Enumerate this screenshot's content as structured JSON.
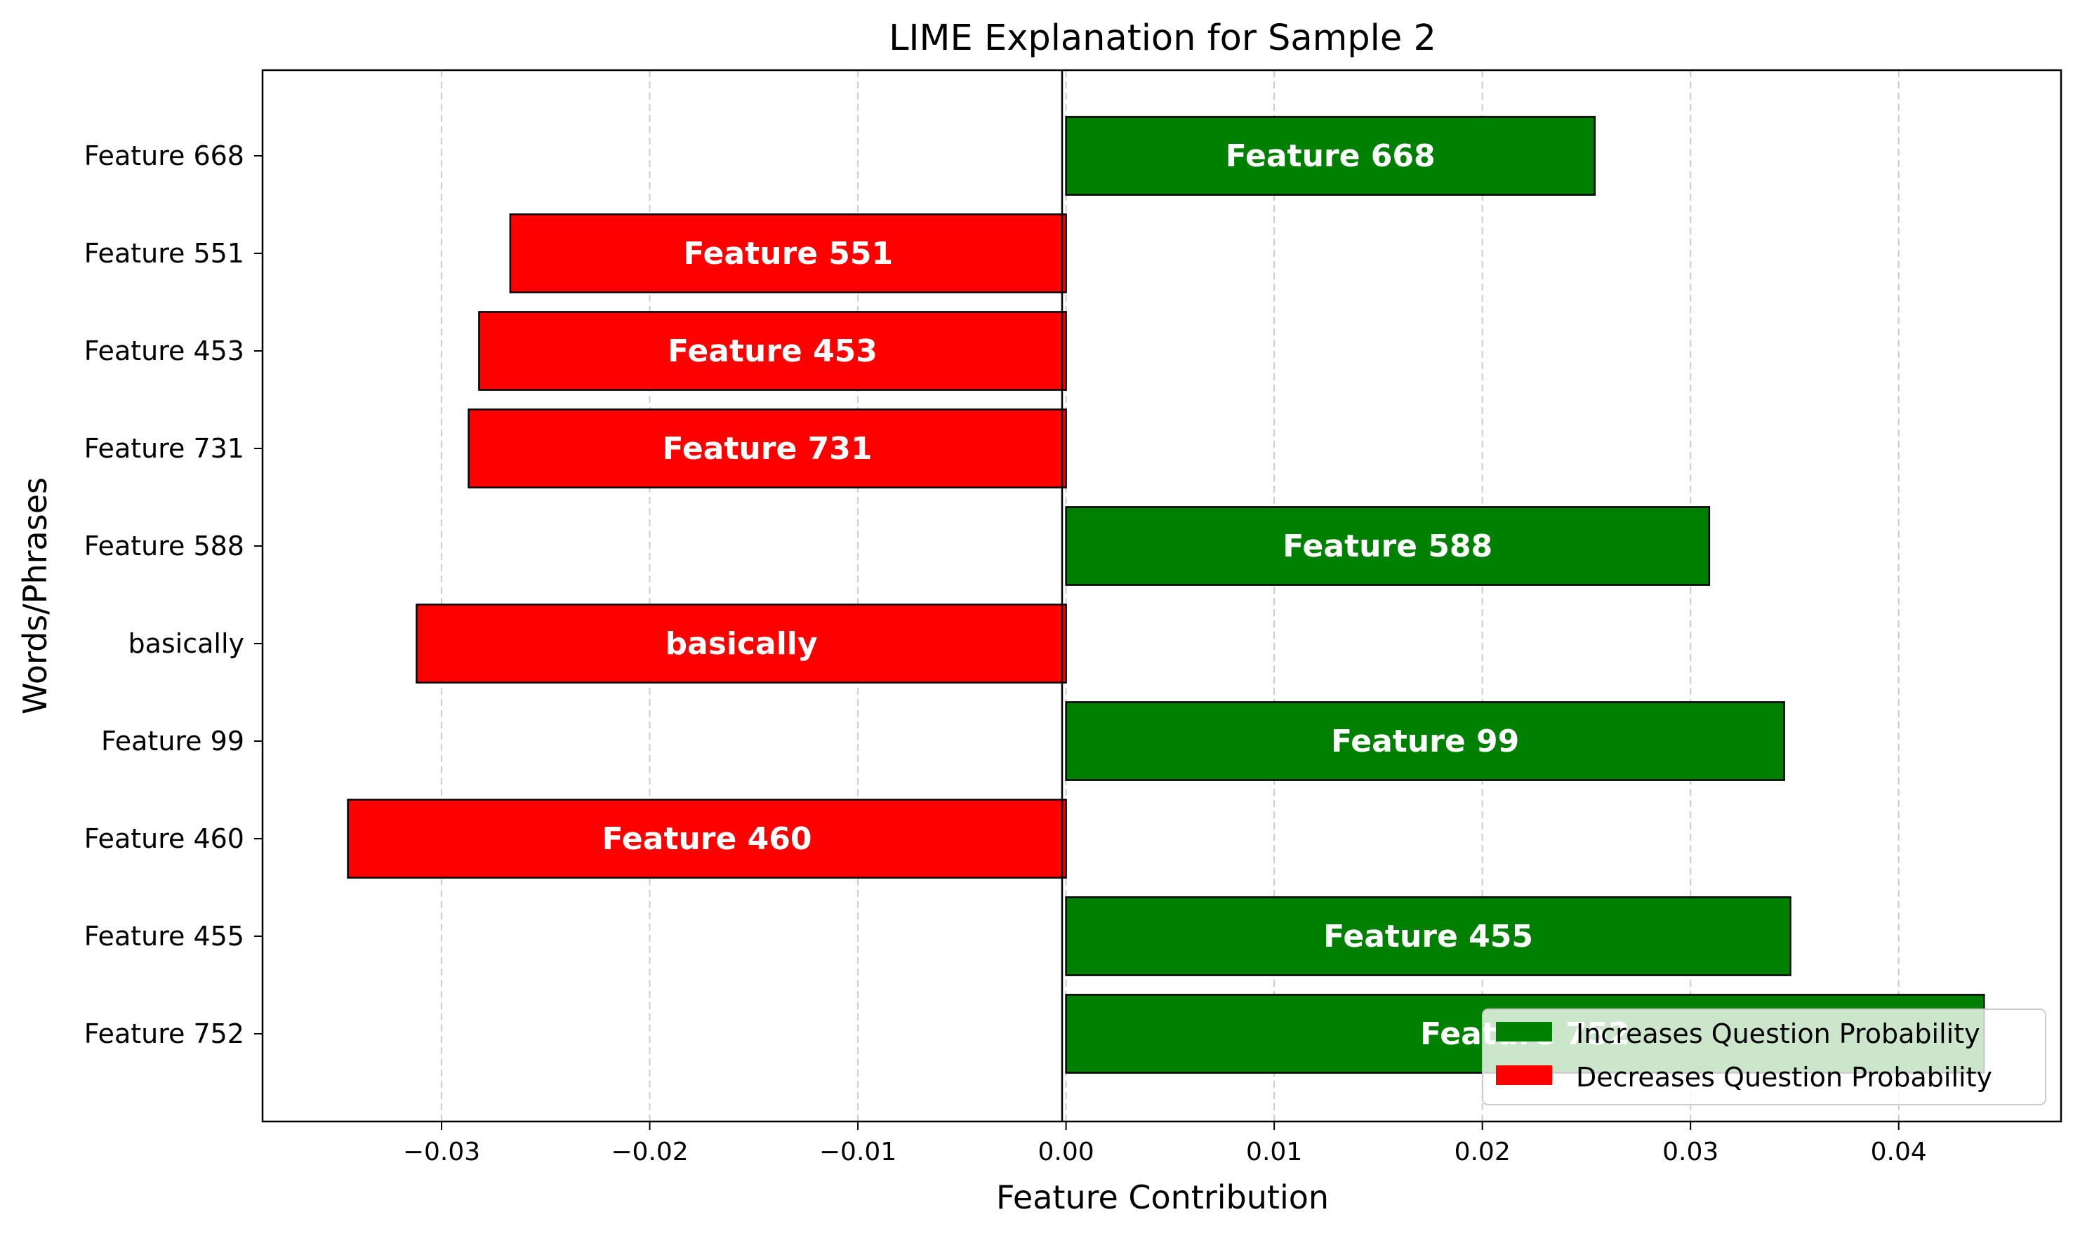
{
  "chart_data": {
    "type": "bar",
    "orientation": "horizontal",
    "title": "LIME Explanation for Sample 2",
    "xlabel": "Feature Contribution",
    "ylabel": "Words/Phrases",
    "xlim": [
      -0.0386,
      0.0478
    ],
    "x_ticks": [
      -0.03,
      -0.02,
      -0.01,
      0.0,
      0.01,
      0.02,
      0.03,
      0.04
    ],
    "x_tick_labels": [
      "−0.03",
      "−0.02",
      "−0.01",
      "0.00",
      "0.01",
      "0.02",
      "0.03",
      "0.04"
    ],
    "grid": "x-dashed",
    "legend_position": "lower-right",
    "categories": [
      "Feature 668",
      "Feature 551",
      "Feature 453",
      "Feature 731",
      "Feature 588",
      "basically",
      "Feature 99",
      "Feature 460",
      "Feature 455",
      "Feature 752"
    ],
    "values": [
      0.0254,
      -0.0267,
      -0.0282,
      -0.0287,
      0.0309,
      -0.0312,
      0.0345,
      -0.0345,
      0.0348,
      0.0441
    ],
    "legend": [
      {
        "label": "Increases Question Probability",
        "color": "#008000"
      },
      {
        "label": "Decreases Question Probability",
        "color": "#ff0000"
      }
    ],
    "colors": {
      "positive": "#008000",
      "negative": "#ff0000",
      "edge": "#000000",
      "grid": "#cccccc"
    }
  }
}
